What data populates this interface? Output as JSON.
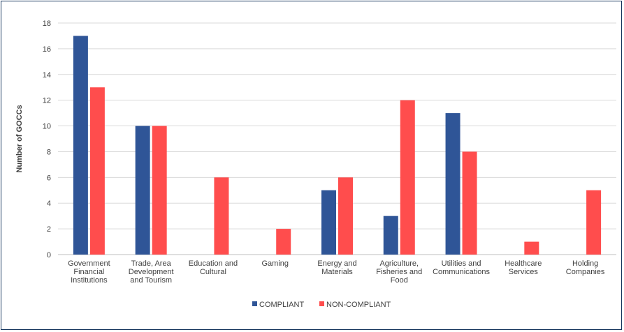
{
  "chart_data": {
    "type": "bar",
    "title": "",
    "xlabel": "",
    "ylabel": "Number of GOCCs",
    "ylim": [
      0,
      18
    ],
    "y_ticks": [
      0,
      2,
      4,
      6,
      8,
      10,
      12,
      14,
      16,
      18
    ],
    "grid": true,
    "legend_position": "bottom",
    "categories": [
      [
        "Government",
        "Financial",
        "Institutions"
      ],
      [
        "Trade, Area",
        "Development",
        "and Tourism"
      ],
      [
        "Education and",
        "Cultural"
      ],
      [
        "Gaming"
      ],
      [
        "Energy and",
        "Materials"
      ],
      [
        "Agriculture,",
        "Fisheries and",
        "Food"
      ],
      [
        "Utilities and",
        "Communications"
      ],
      [
        "Healthcare",
        "Services"
      ],
      [
        "Holding",
        "Companies"
      ]
    ],
    "series": [
      {
        "name": "COMPLIANT",
        "color": "#2f5597",
        "values": [
          17,
          10,
          0,
          0,
          5,
          3,
          11,
          0,
          0
        ]
      },
      {
        "name": "NON-COMPLIANT",
        "color": "#ff4d4d",
        "values": [
          13,
          10,
          6,
          2,
          6,
          12,
          8,
          1,
          5
        ]
      }
    ]
  }
}
